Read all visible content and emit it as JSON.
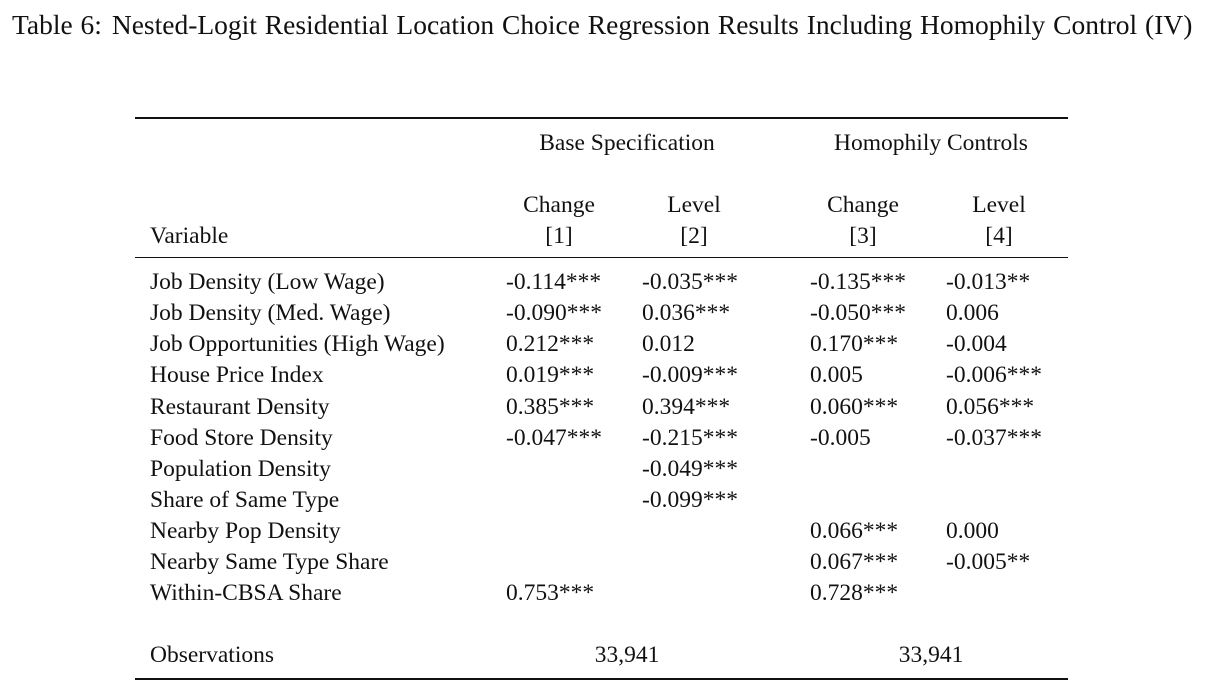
{
  "caption": {
    "label": "Table 6:",
    "title": "Nested-Logit Residential Location Choice Regression Results Including Homophily Control (IV)"
  },
  "table": {
    "groups": [
      "Base Specification",
      "Homophily Controls"
    ],
    "columns": [
      {
        "name": "Change",
        "num": "[1]"
      },
      {
        "name": "Level",
        "num": "[2]"
      },
      {
        "name": "Change",
        "num": "[3]"
      },
      {
        "name": "Level",
        "num": "[4]"
      }
    ],
    "variable_header": "Variable",
    "rows": [
      {
        "label": "Job Density (Low Wage)",
        "values": [
          "-0.114***",
          "-0.035***",
          "-0.135***",
          "-0.013**"
        ]
      },
      {
        "label": "Job Density (Med. Wage)",
        "values": [
          "-0.090***",
          "0.036***",
          "-0.050***",
          "0.006"
        ]
      },
      {
        "label": "Job Opportunities (High Wage)",
        "values": [
          "0.212***",
          "0.012",
          "0.170***",
          "-0.004"
        ]
      },
      {
        "label": "House Price Index",
        "values": [
          "0.019***",
          "-0.009***",
          "0.005",
          "-0.006***"
        ]
      },
      {
        "label": "Restaurant Density",
        "values": [
          "0.385***",
          "0.394***",
          "0.060***",
          "0.056***"
        ]
      },
      {
        "label": "Food Store Density",
        "values": [
          "-0.047***",
          "-0.215***",
          "-0.005",
          "-0.037***"
        ]
      },
      {
        "label": "Population Density",
        "values": [
          "",
          "-0.049***",
          "",
          ""
        ]
      },
      {
        "label": "Share of Same Type",
        "values": [
          "",
          "-0.099***",
          "",
          ""
        ]
      },
      {
        "label": "Nearby Pop Density",
        "values": [
          "",
          "",
          "0.066***",
          "0.000"
        ]
      },
      {
        "label": "Nearby Same Type Share",
        "values": [
          "",
          "",
          "0.067***",
          "-0.005**"
        ]
      },
      {
        "label": "Within-CBSA Share",
        "values": [
          "0.753***",
          "",
          "0.728***",
          ""
        ]
      }
    ],
    "observations": {
      "label": "Observations",
      "base": "33,941",
      "homophily": "33,941"
    }
  }
}
